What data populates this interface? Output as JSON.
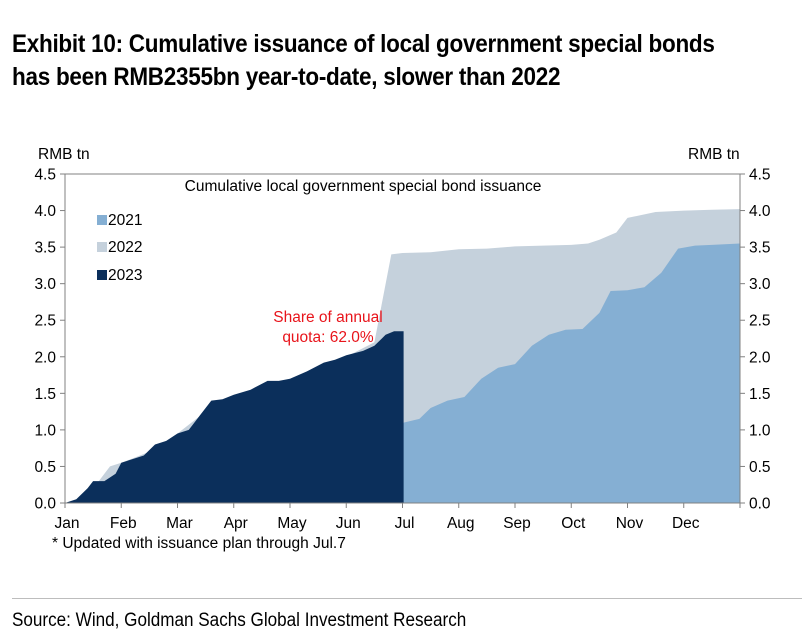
{
  "title_line1": "Exhibit 10: Cumulative issuance of local government special bonds",
  "title_line2": "has been RMB2355bn year-to-date, slower than 2022",
  "source": "Source: Wind, Goldman Sachs Global Investment Research",
  "colors": {
    "y2021": "#85afd3",
    "y2022": "#c5d1dc",
    "y2023": "#0b2f5b",
    "annotation": "#e8141b",
    "axis": "#808080"
  },
  "chart_data": {
    "type": "area",
    "title": "Cumulative local government special bond issuance",
    "ylabel_left": "RMB tn",
    "ylabel_right": "RMB tn",
    "ylim": [
      0,
      4.5
    ],
    "yticks": [
      "0.0",
      "0.5",
      "1.0",
      "1.5",
      "2.0",
      "2.5",
      "3.0",
      "3.5",
      "4.0",
      "4.5"
    ],
    "xlim": [
      0,
      12
    ],
    "xticks": [
      "Jan",
      "Feb",
      "Mar",
      "Apr",
      "May",
      "Jun",
      "Jul",
      "Aug",
      "Sep",
      "Oct",
      "Nov",
      "Dec"
    ],
    "footnote": "* Updated with issuance plan through Jul.7",
    "annotation": {
      "line1": "Share of annual",
      "line2": "quota: 62.0%",
      "x": 5.6,
      "y": 2.35
    },
    "legend": [
      "2021",
      "2022",
      "2023"
    ],
    "series": [
      {
        "name": "2021",
        "x": [
          0,
          0.3,
          0.5,
          1,
          1.5,
          2,
          2.5,
          2.7,
          3,
          3.5,
          4,
          4.5,
          5,
          5.5,
          6.02,
          6.3,
          6.5,
          6.8,
          7.1,
          7.4,
          7.7,
          8.0,
          8.3,
          8.6,
          8.9,
          9.2,
          9.5,
          9.7,
          10.0,
          10.3,
          10.6,
          10.9,
          11.2,
          11.5,
          12
        ],
        "y": [
          0,
          0,
          0,
          0,
          0,
          0,
          0,
          0,
          0,
          0,
          0,
          0,
          0,
          0,
          1.1,
          1.15,
          1.3,
          1.4,
          1.45,
          1.7,
          1.85,
          1.9,
          2.15,
          2.3,
          2.37,
          2.38,
          2.6,
          2.9,
          2.91,
          2.95,
          3.15,
          3.48,
          3.52,
          3.53,
          3.55
        ]
      },
      {
        "name": "2022",
        "x": [
          0,
          0.2,
          0.4,
          0.6,
          0.8,
          1.0,
          1.5,
          2.0,
          2.5,
          3.0,
          3.5,
          4.0,
          4.5,
          5.0,
          5.5,
          5.8,
          6.0,
          6.5,
          7.0,
          7.5,
          8.0,
          8.5,
          9.0,
          9.3,
          9.5,
          9.8,
          10.0,
          10.5,
          11.0,
          11.5,
          12
        ],
        "y": [
          0,
          0.05,
          0.2,
          0.3,
          0.5,
          0.55,
          0.7,
          0.95,
          1.25,
          1.45,
          1.6,
          1.7,
          1.85,
          2.0,
          2.2,
          3.4,
          3.42,
          3.43,
          3.47,
          3.48,
          3.51,
          3.52,
          3.53,
          3.55,
          3.6,
          3.7,
          3.9,
          3.98,
          4.0,
          4.01,
          4.02
        ]
      },
      {
        "name": "2023",
        "x": [
          0,
          0.2,
          0.4,
          0.5,
          0.7,
          0.9,
          1.0,
          1.2,
          1.4,
          1.6,
          1.8,
          2.0,
          2.2,
          2.4,
          2.6,
          2.8,
          3.0,
          3.3,
          3.6,
          3.8,
          4.0,
          4.3,
          4.6,
          4.8,
          5.0,
          5.3,
          5.5,
          5.7,
          5.85,
          6.0,
          6.02
        ],
        "y": [
          0,
          0.05,
          0.2,
          0.3,
          0.3,
          0.4,
          0.55,
          0.6,
          0.65,
          0.8,
          0.85,
          0.95,
          1.0,
          1.2,
          1.4,
          1.42,
          1.48,
          1.55,
          1.67,
          1.67,
          1.7,
          1.8,
          1.92,
          1.96,
          2.02,
          2.08,
          2.15,
          2.3,
          2.35,
          2.35,
          2.35
        ]
      }
    ]
  }
}
